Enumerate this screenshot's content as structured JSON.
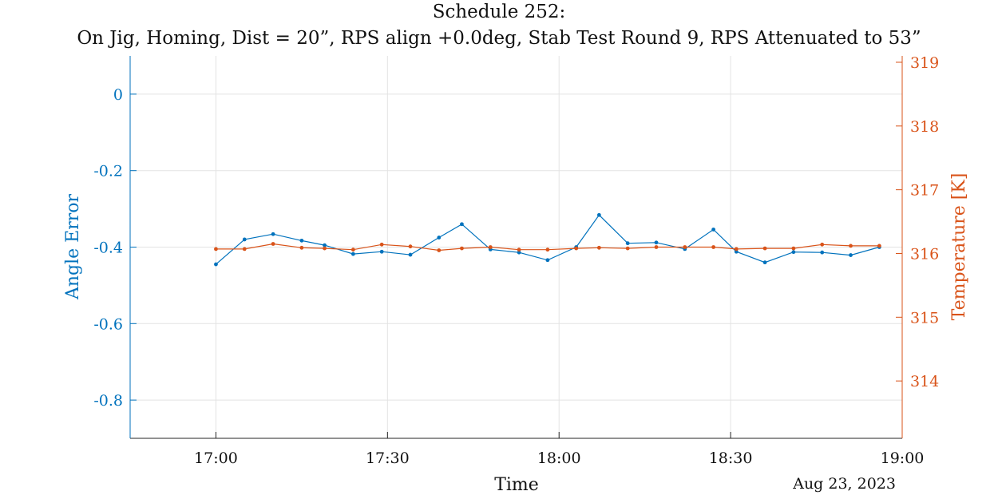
{
  "chart_data": {
    "type": "line",
    "title_line1": "Schedule 252:",
    "title_line2": "On Jig, Homing, Dist = 20”, RPS align +0.0deg, Stab Test Round 9, RPS Attenuated to 53”",
    "xlabel": "Time",
    "date_label": "Aug 23, 2023",
    "ylabel_left": "Angle Error",
    "ylabel_right": "Temperature [K]",
    "x_ticks": [
      "17:00",
      "17:30",
      "18:00",
      "18:30",
      "19:00"
    ],
    "xlim": [
      "16:45",
      "19:00"
    ],
    "ylim_left": [
      -0.9,
      0.1
    ],
    "yticks_left": [
      "0",
      "-0.2",
      "-0.4",
      "-0.6",
      "-0.8"
    ],
    "ylim_right": [
      313.1,
      319.1
    ],
    "yticks_right": [
      "319",
      "318",
      "317",
      "316",
      "315",
      "314"
    ],
    "grid": true,
    "colors": {
      "left": "#0072BD",
      "right": "#D95319",
      "grid": "#e3e3e3",
      "text": "#111111"
    },
    "x": [
      "17:00",
      "17:05",
      "17:10",
      "17:15",
      "17:19",
      "17:24",
      "17:29",
      "17:34",
      "17:39",
      "17:43",
      "17:48",
      "17:53",
      "17:58",
      "18:03",
      "18:07",
      "18:12",
      "18:17",
      "18:22",
      "18:27",
      "18:31",
      "18:36",
      "18:41",
      "18:46",
      "18:51",
      "18:56"
    ],
    "series": [
      {
        "axis": "left",
        "values": [
          -0.445,
          -0.38,
          -0.366,
          -0.383,
          -0.395,
          -0.418,
          -0.412,
          -0.42,
          -0.375,
          -0.34,
          -0.406,
          -0.414,
          -0.434,
          -0.4,
          -0.316,
          -0.39,
          -0.388,
          -0.405,
          -0.354,
          -0.412,
          -0.44,
          -0.413,
          -0.414,
          -0.421,
          -0.4
        ]
      },
      {
        "axis": "right",
        "values": [
          316.07,
          316.07,
          316.15,
          316.09,
          316.08,
          316.06,
          316.14,
          316.11,
          316.05,
          316.08,
          316.1,
          316.06,
          316.06,
          316.08,
          316.09,
          316.08,
          316.1,
          316.1,
          316.1,
          316.07,
          316.08,
          316.08,
          316.14,
          316.12,
          316.12
        ]
      }
    ]
  }
}
